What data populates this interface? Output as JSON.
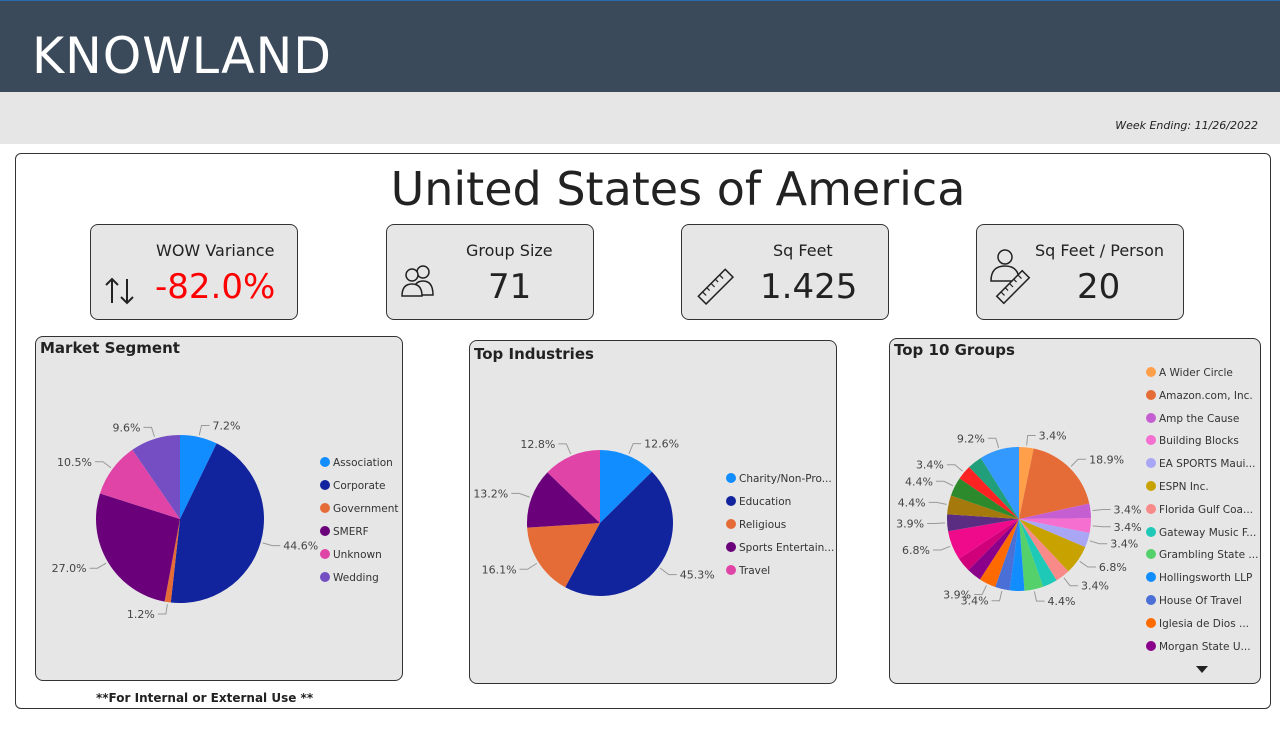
{
  "header": {
    "logo": "KNOWLAND"
  },
  "subbar": {
    "week_ending": "Week Ending: 11/26/2022"
  },
  "main": {
    "title": "United States of America",
    "footer_note": "**For Internal or External Use **"
  },
  "kpis": {
    "wow": {
      "label": "WOW Variance",
      "value": "-82.0%",
      "color": "#ff0000",
      "icon": "up-down-arrows-icon"
    },
    "group_size": {
      "label": "Group Size",
      "value": "71",
      "icon": "people-icon"
    },
    "sq_feet": {
      "label": "Sq Feet",
      "value": "1.425",
      "icon": "ruler-icon"
    },
    "sq_feet_person": {
      "label": "Sq Feet / Person",
      "value": "20",
      "icon": "person-ruler-icon"
    }
  },
  "chart_data": [
    {
      "type": "pie",
      "title": "Market Segment",
      "categories": [
        "Association",
        "Corporate",
        "Government",
        "SMERF",
        "Unknown",
        "Wedding"
      ],
      "values": [
        7.2,
        44.6,
        1.2,
        27.0,
        10.5,
        9.6
      ],
      "labels": [
        "7.2%",
        "44.6%",
        "1.2%",
        "27.0%",
        "10.5%",
        "9.6%"
      ],
      "colors": [
        "#118dff",
        "#12239e",
        "#e66c37",
        "#6b007b",
        "#e044a7",
        "#744ec2"
      ]
    },
    {
      "type": "pie",
      "title": "Top Industries",
      "categories": [
        "Charity/Non-Pro...",
        "Education",
        "Religious",
        "Sports Entertain...",
        "Travel"
      ],
      "values": [
        12.6,
        45.3,
        16.1,
        13.2,
        12.8
      ],
      "labels": [
        "12.6%",
        "45.3%",
        "16.1%",
        "13.2%",
        "12.8%"
      ],
      "colors": [
        "#118dff",
        "#12239e",
        "#e66c37",
        "#6b007b",
        "#e044a7"
      ]
    },
    {
      "type": "pie",
      "title": "Top 10 Groups",
      "categories": [
        "A Wider Circle",
        "Amazon.com, Inc.",
        "Amp the Cause",
        "Building Blocks",
        "EA SPORTS Maui...",
        "ESPN Inc.",
        "Florida Gulf Coa...",
        "Gateway Music F...",
        "Grambling State ...",
        "Hollingsworth LLP",
        "House Of Travel",
        "Iglesia de Dios ...",
        "Morgan State U..."
      ],
      "legend_colors": [
        "#ff9f4a",
        "#e66c37",
        "#c55fd1",
        "#f46fcf",
        "#a9a6f5",
        "#c8a300",
        "#f98a8a",
        "#1fc9b8",
        "#55d16c",
        "#118dff",
        "#4a6fd6",
        "#ff6a00",
        "#8b008b"
      ],
      "values": [
        3.4,
        18.9,
        3.4,
        3.4,
        3.4,
        6.8,
        3.4,
        3.4,
        4.4,
        3.4,
        3.4,
        3.9,
        3.4,
        3.4,
        6.8,
        3.9,
        4.4,
        4.4,
        3.4,
        3.4,
        9.2
      ],
      "labels": [
        "3.4%",
        "18.9%",
        "3.4%",
        "3.4%",
        "3.4%",
        "6.8%",
        "3.4%",
        "",
        "4.4%",
        "",
        "3.4%",
        "3.9%",
        "",
        "",
        "6.8%",
        "3.9%",
        "4.4%",
        "4.4%",
        "3.4%",
        "",
        "9.2%"
      ],
      "colors": [
        "#ff9f4a",
        "#e66c37",
        "#c55fd1",
        "#f46fcf",
        "#a9a6f5",
        "#c8a300",
        "#f98a8a",
        "#1fc9b8",
        "#55d16c",
        "#118dff",
        "#4a6fd6",
        "#ff6a00",
        "#8b008b",
        "#d0007a",
        "#ee0a8a",
        "#5a2d82",
        "#a6790d",
        "#2c8a2c",
        "#ff2222",
        "#219e7a",
        "#3399ff"
      ]
    }
  ]
}
